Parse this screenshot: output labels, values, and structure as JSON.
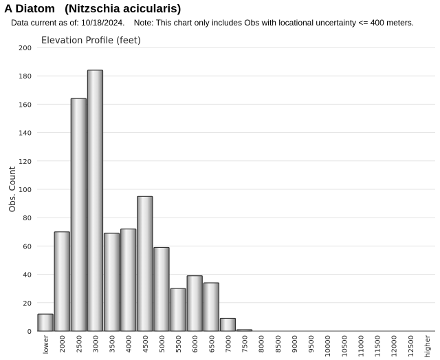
{
  "header": {
    "title": "A Diatom   (Nitzschia acicularis)",
    "note": "Data current as of: 10/18/2024.    Note: This chart only includes Obs with locational uncertainty <= 400 meters."
  },
  "chart_data": {
    "type": "bar",
    "title": "Elevation Profile (feet)",
    "xlabel": "",
    "ylabel": "Obs. Count",
    "ylim": [
      0,
      200
    ],
    "yticks": [
      0,
      20,
      40,
      60,
      80,
      100,
      120,
      140,
      160,
      180,
      200
    ],
    "grid": true,
    "categories": [
      "lower",
      "2000",
      "2500",
      "3000",
      "3500",
      "4000",
      "4500",
      "5000",
      "5500",
      "6000",
      "6500",
      "7000",
      "7500",
      "8000",
      "8500",
      "9000",
      "9500",
      "10000",
      "10500",
      "11000",
      "11500",
      "12000",
      "12500",
      "higher"
    ],
    "values": [
      12,
      70,
      164,
      184,
      69,
      72,
      95,
      59,
      30,
      39,
      34,
      9,
      1,
      0,
      0,
      0,
      0,
      0,
      0,
      0,
      0,
      0,
      0,
      0
    ],
    "colors": {
      "bar_fill": "#c8c8c8",
      "bar_edge": "#333333",
      "grid": "#e3e3e3"
    }
  }
}
